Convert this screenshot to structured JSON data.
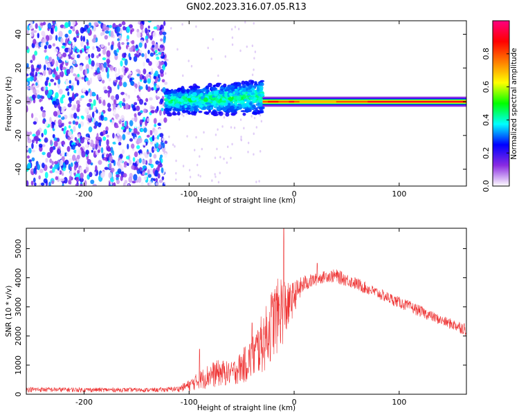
{
  "chart_data": [
    {
      "type": "heatmap",
      "title": "GN02.2023.316.07.05.R13",
      "xlabel": "Height of straight line (km)",
      "ylabel": "Frequency (Hz)",
      "xlim": [
        -255,
        164
      ],
      "ylim": [
        -50,
        48
      ],
      "x_ticks": [
        -200,
        -100,
        0,
        100
      ],
      "y_ticks": [
        -40,
        -20,
        0,
        20,
        40
      ],
      "colorbar": {
        "label": "Normalized spectral amplitude",
        "range": [
          0.0,
          1.0
        ],
        "ticks": [
          0.0,
          0.2,
          0.4,
          0.6,
          0.8
        ],
        "tick_labels": [
          "0.0",
          "0.2",
          "0.4",
          "0.6",
          "0.8"
        ],
        "colormap": [
          "#ffffff",
          "#8a2be2",
          "#0000ff",
          "#00ffff",
          "#00ff00",
          "#ffff00",
          "#ff7f00",
          "#ff0000",
          "#ff0080"
        ]
      },
      "regions": [
        {
          "description": "noise",
          "x_range": [
            -255,
            -122
          ],
          "freq_range": [
            -50,
            48
          ],
          "amplitude": [
            0.0,
            0.25
          ]
        },
        {
          "description": "broadband",
          "x_range": [
            -122,
            -30
          ],
          "freq_center": 0,
          "freq_halfwidth_start": 8,
          "freq_halfwidth_end": 12,
          "amplitude": [
            0.2,
            0.5
          ]
        },
        {
          "description": "narrowband",
          "x_range": [
            -30,
            164
          ],
          "freq_center": 0,
          "freq_halfwidth": 1.5,
          "amplitude": [
            0.5,
            1.0
          ]
        }
      ]
    },
    {
      "type": "line",
      "xlabel": "Height of straight line (km)",
      "ylabel": "SNR (10 * v/v)",
      "xlim": [
        -255,
        164
      ],
      "ylim": [
        0,
        5700
      ],
      "x_ticks": [
        -200,
        -100,
        0,
        100
      ],
      "y_ticks": [
        0,
        1000,
        2000,
        3000,
        4000,
        5000
      ],
      "color": "#ee3333",
      "envelope": {
        "x": [
          -255,
          -200,
          -130,
          -110,
          -100,
          -90,
          -80,
          -70,
          -60,
          -50,
          -40,
          -30,
          -25,
          -20,
          -15,
          -12,
          -10,
          -5,
          0,
          5,
          10,
          20,
          30,
          40,
          50,
          60,
          80,
          100,
          120,
          140,
          164
        ],
        "low": [
          70,
          70,
          70,
          80,
          100,
          150,
          200,
          250,
          300,
          350,
          450,
          700,
          900,
          1200,
          1400,
          1600,
          1700,
          2200,
          2800,
          3200,
          3500,
          3700,
          3850,
          3800,
          3700,
          3550,
          3250,
          2950,
          2650,
          2350,
          2000
        ],
        "high": [
          250,
          230,
          220,
          280,
          500,
          800,
          1100,
          1200,
          1100,
          1500,
          2000,
          2800,
          3200,
          3800,
          4000,
          4200,
          4100,
          3800,
          3900,
          4000,
          4100,
          4150,
          4250,
          4300,
          4150,
          4000,
          3650,
          3350,
          3050,
          2700,
          2450
        ]
      },
      "spikes": [
        {
          "x": -90,
          "y": 1550
        },
        {
          "x": -40,
          "y": 2450
        },
        {
          "x": -10,
          "y": 5700
        },
        {
          "x": 22,
          "y": 4500
        }
      ]
    }
  ]
}
